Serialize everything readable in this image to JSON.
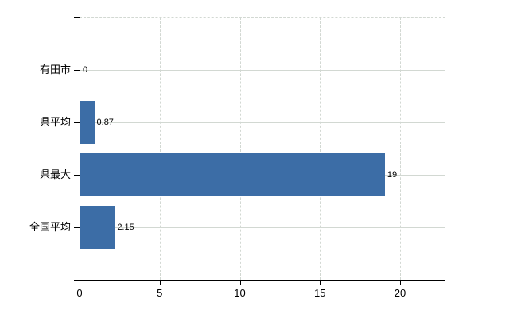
{
  "chart_data": {
    "type": "bar",
    "orientation": "horizontal",
    "categories": [
      "有田市",
      "県平均",
      "県最大",
      "全国平均"
    ],
    "values": [
      0,
      0.87,
      19,
      2.15
    ],
    "value_labels": [
      "0",
      "0.87",
      "19",
      "2.15"
    ],
    "x_axis": {
      "ticks": [
        0,
        5,
        10,
        15,
        20
      ],
      "tick_labels": [
        "0",
        "5",
        "10",
        "15",
        "20"
      ],
      "min": 0,
      "max": 22.8
    },
    "grid": true,
    "legend": false,
    "colors": {
      "bar": "#3c6da6",
      "grid": "#d2d8d2",
      "axis": "#000000",
      "text": "#000000",
      "background": "#ffffff"
    }
  }
}
